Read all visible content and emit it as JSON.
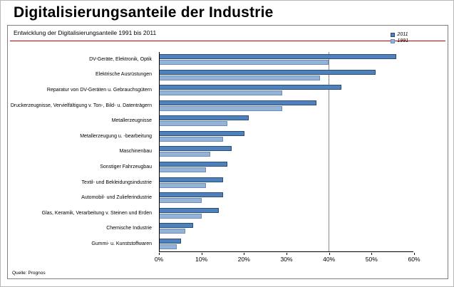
{
  "page": {
    "title": "Digitalisierungsanteile der Industrie",
    "source": "Quelle: Prognos"
  },
  "chart_data": {
    "type": "bar",
    "orientation": "horizontal",
    "title": "Entwicklung der Digitalisierungsanteile 1991 bis 2011",
    "categories": [
      "DV-Geräte, Elektronik, Optik",
      "Elektrische Ausrüstungen",
      "Reparatur von DV-Geräten u. Gebrauchsgütern",
      "Druckerzeugnisse, Vervielfältigung v. Ton-, Bild- u. Datenträgern",
      "Metallerzeugnisse",
      "Metallerzeugung u. -bearbeitung",
      "Maschinenbau",
      "Sonstiger Fahrzeugbau",
      "Textil- und Bekleidungsindustrie",
      "Automobil- und Zulieferindustrie",
      "Glas, Keramik, Verarbeitung v. Steinen und Erden",
      "Chemische Industrie",
      "Gummi- u. Kunststoffwaren"
    ],
    "series": [
      {
        "name": "2011",
        "color": "#4f81bd",
        "border": "#2b4d75",
        "values": [
          56,
          51,
          43,
          37,
          21,
          20,
          17,
          16,
          15,
          15,
          14,
          8,
          5
        ]
      },
      {
        "name": "1991",
        "color": "#95b3d7",
        "border": "#6b8cb8",
        "values": [
          40,
          38,
          29,
          29,
          16,
          15,
          12,
          11,
          11,
          10,
          10,
          6,
          4
        ]
      }
    ],
    "xlabel": "",
    "ylabel": "",
    "xlim": [
      0,
      60
    ],
    "xticks": [
      {
        "value": 0,
        "label": "0%"
      },
      {
        "value": 10,
        "label": "10%"
      },
      {
        "value": 20,
        "label": "20%"
      },
      {
        "value": 30,
        "label": "30%"
      },
      {
        "value": 40,
        "label": "40%"
      },
      {
        "value": 50,
        "label": "50%"
      },
      {
        "value": 60,
        "label": "60%"
      }
    ],
    "reference_line_value": 40,
    "grid": "off",
    "legend_position": "top-right",
    "accent_line_color": "#cc0000"
  }
}
